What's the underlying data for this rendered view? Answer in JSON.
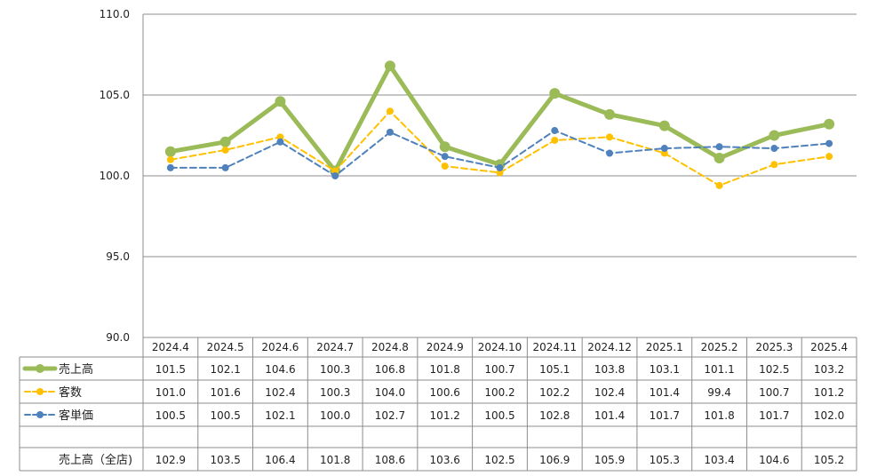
{
  "chart_data": {
    "type": "line",
    "title": "",
    "xlabel": "",
    "ylabel": "",
    "ylim": [
      90,
      110
    ],
    "yticks": [
      "90.0",
      "95.0",
      "100.0",
      "105.0",
      "110.0"
    ],
    "grid": "horizontal",
    "legend_placement": "table-left",
    "categories": [
      "2024.4",
      "2024.5",
      "2024.6",
      "2024.7",
      "2024.8",
      "2024.9",
      "2024.10",
      "2024.11",
      "2024.12",
      "2025.1",
      "2025.2",
      "2025.3",
      "2025.4"
    ],
    "series": [
      {
        "name": "売上高",
        "color": "#9bbb59",
        "style": "solid-thick",
        "values": [
          101.5,
          102.1,
          104.6,
          100.3,
          106.8,
          101.8,
          100.7,
          105.1,
          103.8,
          103.1,
          101.1,
          102.5,
          103.2
        ]
      },
      {
        "name": "客数",
        "color": "#ffc000",
        "style": "dashed",
        "values": [
          101.0,
          101.6,
          102.4,
          100.3,
          104.0,
          100.6,
          100.2,
          102.2,
          102.4,
          101.4,
          99.4,
          100.7,
          101.2
        ]
      },
      {
        "name": "客単価",
        "color": "#4f81bd",
        "style": "dashed",
        "values": [
          100.5,
          100.5,
          102.1,
          100.0,
          102.7,
          101.2,
          100.5,
          102.8,
          101.4,
          101.7,
          101.8,
          101.7,
          102.0
        ]
      }
    ],
    "table_extra_row": {
      "name": "売上高（全店)",
      "values": [
        102.9,
        103.5,
        106.4,
        101.8,
        108.6,
        103.6,
        102.5,
        106.9,
        105.9,
        105.3,
        103.4,
        104.6,
        105.2
      ]
    }
  }
}
